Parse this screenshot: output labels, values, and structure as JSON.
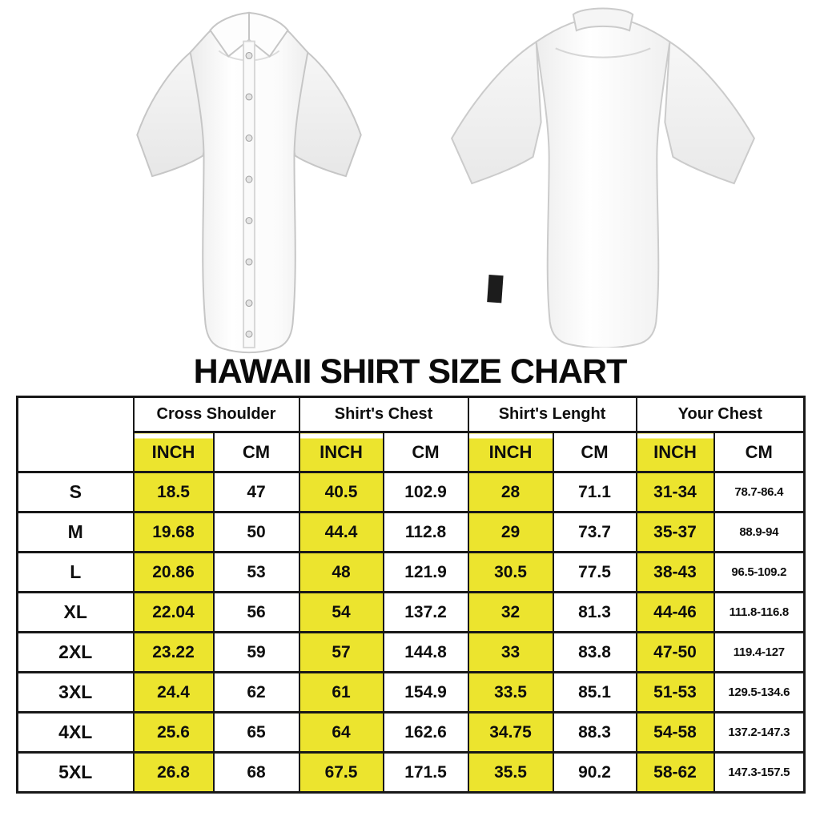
{
  "title": "HAWAII SHIRT SIZE CHART",
  "colors": {
    "highlight_yellow": "#ece42e",
    "border_black": "#181818",
    "text_black": "#0e0e0e",
    "background": "#ffffff",
    "tag_black": "#1c1c1c"
  },
  "images": {
    "front_shirt": "white short-sleeve button-up shirt, front view",
    "back_shirt": "white short-sleeve button-up shirt, back view with hem tag"
  },
  "table": {
    "corner_label": "",
    "group_headers": [
      "Cross Shoulder",
      "Shirt's Chest",
      "Shirt's Lenght",
      "Your Chest"
    ],
    "unit_headers": [
      "INCH",
      "CM"
    ],
    "column_keys": [
      "size",
      "cross_shoulder_inch",
      "cross_shoulder_cm",
      "shirts_chest_inch",
      "shirts_chest_cm",
      "shirts_lenght_inch",
      "shirts_lenght_cm",
      "your_chest_inch",
      "your_chest_cm"
    ],
    "rows": [
      [
        "S",
        "18.5",
        "47",
        "40.5",
        "102.9",
        "28",
        "71.1",
        "31-34",
        "78.7-86.4"
      ],
      [
        "M",
        "19.68",
        "50",
        "44.4",
        "112.8",
        "29",
        "73.7",
        "35-37",
        "88.9-94"
      ],
      [
        "L",
        "20.86",
        "53",
        "48",
        "121.9",
        "30.5",
        "77.5",
        "38-43",
        "96.5-109.2"
      ],
      [
        "XL",
        "22.04",
        "56",
        "54",
        "137.2",
        "32",
        "81.3",
        "44-46",
        "111.8-116.8"
      ],
      [
        "2XL",
        "23.22",
        "59",
        "57",
        "144.8",
        "33",
        "83.8",
        "47-50",
        "119.4-127"
      ],
      [
        "3XL",
        "24.4",
        "62",
        "61",
        "154.9",
        "33.5",
        "85.1",
        "51-53",
        "129.5-134.6"
      ],
      [
        "4XL",
        "25.6",
        "65",
        "64",
        "162.6",
        "34.75",
        "88.3",
        "54-58",
        "137.2-147.3"
      ],
      [
        "5XL",
        "26.8",
        "68",
        "67.5",
        "171.5",
        "35.5",
        "90.2",
        "58-62",
        "147.3-157.5"
      ]
    ]
  }
}
